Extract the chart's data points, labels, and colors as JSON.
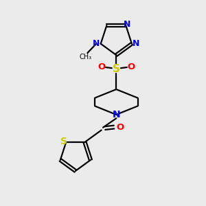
{
  "bg_color": "#ebebeb",
  "bond_color": "#000000",
  "N_color": "#0000ee",
  "O_color": "#ff0000",
  "S_color": "#cccc00",
  "line_width": 1.6,
  "figsize": [
    3.0,
    3.0
  ],
  "dpi": 100,
  "xlim": [
    0,
    10
  ],
  "ylim": [
    0,
    10
  ]
}
